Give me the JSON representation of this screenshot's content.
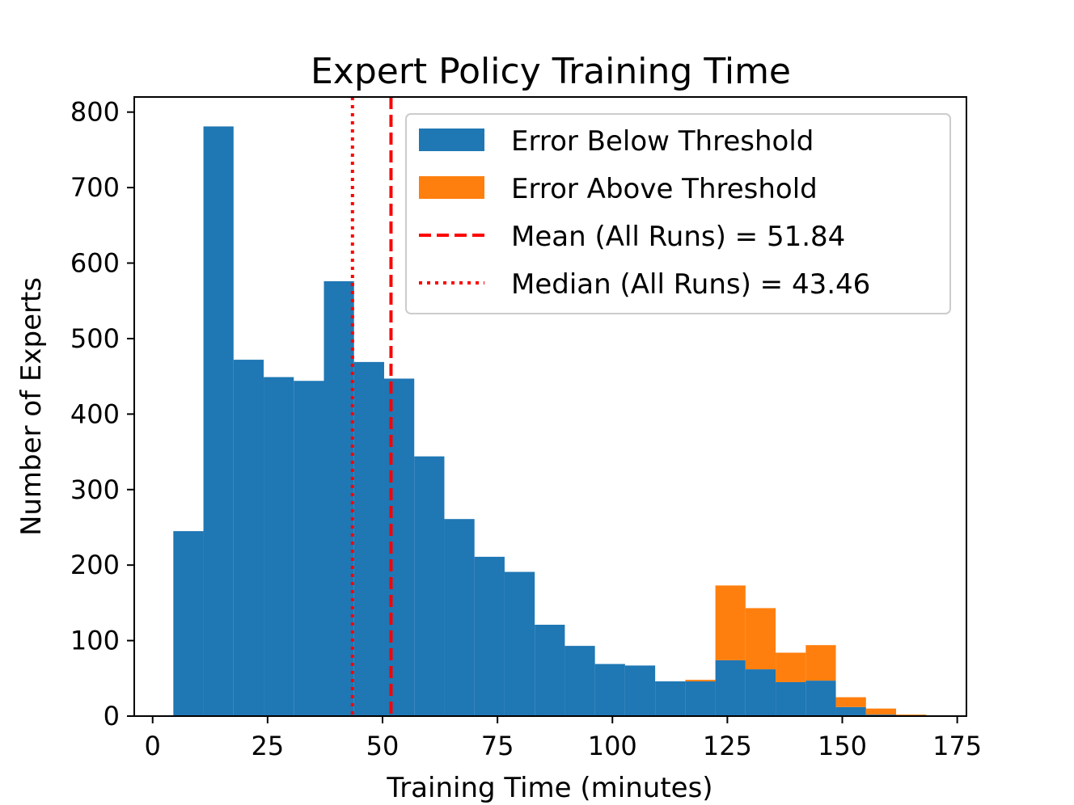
{
  "chart_data": {
    "type": "bar",
    "title": "Expert Policy Training Time",
    "xlabel": "Training Time (minutes)",
    "ylabel": "Number of Experts",
    "xlim": [
      -4,
      177
    ],
    "ylim": [
      0,
      820
    ],
    "xticks": [
      0,
      25,
      50,
      75,
      100,
      125,
      150,
      175
    ],
    "yticks": [
      0,
      100,
      200,
      300,
      400,
      500,
      600,
      700,
      800
    ],
    "grid": false,
    "legend_position": "top-right",
    "stacked": true,
    "bin_edges": [
      4.5,
      11.05,
      17.6,
      24.15,
      30.7,
      37.25,
      43.8,
      50.35,
      56.9,
      63.45,
      70.0,
      76.55,
      83.1,
      89.65,
      96.2,
      102.75,
      109.3,
      115.85,
      122.4,
      128.95,
      135.5,
      142.05,
      148.6,
      155.15,
      161.7,
      168.25
    ],
    "series": [
      {
        "name": "Error Below Threshold",
        "color": "#1f77b4",
        "values": [
          245,
          781,
          472,
          449,
          444,
          576,
          469,
          447,
          344,
          261,
          211,
          191,
          121,
          93,
          69,
          67,
          46,
          46,
          74,
          62,
          45,
          47,
          12,
          2,
          0
        ]
      },
      {
        "name": "Error Above Threshold",
        "color": "#ff7f0e",
        "values": [
          0,
          0,
          0,
          0,
          0,
          0,
          0,
          0,
          0,
          0,
          0,
          0,
          0,
          0,
          0,
          0,
          0,
          2,
          99,
          81,
          39,
          47,
          13,
          8,
          2
        ]
      }
    ],
    "reference_lines": [
      {
        "name": "Mean (All Runs) = 51.84",
        "x": 51.84,
        "style": "dashed",
        "color": "#ff0000"
      },
      {
        "name": "Median (All Runs) = 43.46",
        "x": 43.46,
        "style": "dotted",
        "color": "#ff0000"
      }
    ]
  }
}
